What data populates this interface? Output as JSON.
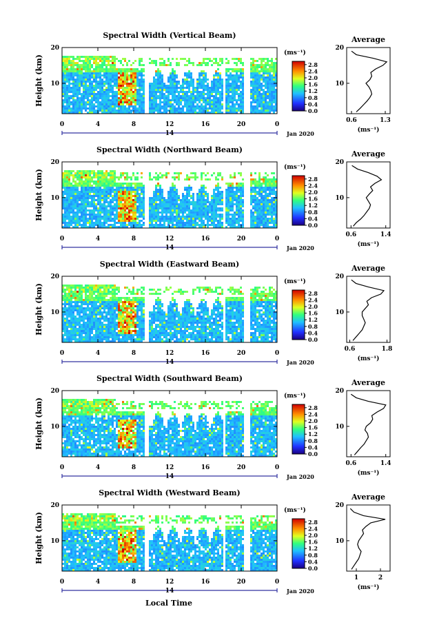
{
  "figure": {
    "ylabel": "Height (km)",
    "xlabel": "Local Time",
    "date_label": "Jan 2020",
    "day_label": "14",
    "unit_label": "(ms⁻¹)",
    "average_title": "Average"
  },
  "chart_data": [
    {
      "type": "heatmap",
      "title": "Spectral Width (Vertical Beam)",
      "xlabel": "Local Time",
      "ylabel": "Height (km)",
      "x_ticks": [
        "0",
        "4",
        "8",
        "12",
        "16",
        "20",
        "0"
      ],
      "xlim": [
        0,
        24
      ],
      "y_ticks": [
        "10",
        "20"
      ],
      "ylim": [
        1.5,
        20
      ],
      "colorbar": {
        "label": "(ms⁻¹)",
        "ticks": [
          "0.0",
          "0.4",
          "0.8",
          "1.2",
          "1.6",
          "2.0",
          "2.4",
          "2.8"
        ],
        "range": [
          0,
          3.0
        ]
      },
      "data_gaps_hours": [
        [
          5.9,
          6.1
        ],
        [
          9.2,
          9.6
        ],
        [
          18.0,
          18.3
        ],
        [
          20.4,
          21.0
        ]
      ],
      "enhanced_region": {
        "x": [
          6.3,
          8.3
        ],
        "y": [
          4,
          13
        ],
        "value": 2.6
      },
      "average_profile": {
        "title": "Average",
        "xlabel": "(ms⁻¹)",
        "x_ticks": [
          "0.6",
          "1.3"
        ],
        "xlim": [
          0.5,
          1.4
        ],
        "ylim": [
          1.5,
          20
        ],
        "height_km": [
          2,
          3,
          4,
          5,
          6,
          7,
          8,
          9,
          10,
          11,
          12,
          13,
          14,
          15,
          16,
          17,
          18,
          19
        ],
        "value": [
          0.7,
          0.78,
          0.85,
          0.92,
          0.98,
          1.02,
          1.0,
          0.96,
          0.9,
          0.98,
          1.02,
          1.0,
          1.1,
          1.25,
          1.33,
          1.05,
          0.7,
          0.6
        ]
      }
    },
    {
      "type": "heatmap",
      "title": "Spectral Width (Northward Beam)",
      "xlabel": "Local Time",
      "ylabel": "Height (km)",
      "x_ticks": [
        "0",
        "4",
        "8",
        "12",
        "16",
        "20",
        "0"
      ],
      "xlim": [
        0,
        24
      ],
      "y_ticks": [
        "10",
        "20"
      ],
      "ylim": [
        1.5,
        20
      ],
      "colorbar": {
        "label": "(ms⁻¹)",
        "ticks": [
          "0.0",
          "0.4",
          "0.8",
          "1.2",
          "1.6",
          "2.0",
          "2.4",
          "2.8"
        ],
        "range": [
          0,
          3.0
        ]
      },
      "data_gaps_hours": [
        [
          5.9,
          6.1
        ],
        [
          9.2,
          9.6
        ],
        [
          18.0,
          18.3
        ],
        [
          20.4,
          21.0
        ]
      ],
      "enhanced_region": {
        "x": [
          6.3,
          8.3
        ],
        "y": [
          3,
          12
        ],
        "value": 2.6
      },
      "average_profile": {
        "title": "Average",
        "xlabel": "(ms⁻¹)",
        "x_ticks": [
          "0.6",
          "1.4"
        ],
        "xlim": [
          0.5,
          1.5
        ],
        "ylim": [
          1.5,
          20
        ],
        "height_km": [
          2,
          3,
          4,
          5,
          6,
          7,
          8,
          9,
          10,
          11,
          12,
          13,
          14,
          15,
          16,
          17,
          18,
          19
        ],
        "value": [
          0.65,
          0.72,
          0.82,
          0.9,
          0.96,
          1.02,
          1.05,
          1.0,
          0.95,
          1.02,
          1.1,
          1.05,
          1.15,
          1.3,
          1.2,
          1.0,
          0.75,
          0.62
        ]
      }
    },
    {
      "type": "heatmap",
      "title": "Spectral Width (Eastward Beam)",
      "xlabel": "Local Time",
      "ylabel": "Height (km)",
      "x_ticks": [
        "0",
        "4",
        "8",
        "12",
        "16",
        "20",
        "0"
      ],
      "xlim": [
        0,
        24
      ],
      "y_ticks": [
        "10",
        "20"
      ],
      "ylim": [
        1.5,
        20
      ],
      "colorbar": {
        "label": "(ms⁻¹)",
        "ticks": [
          "0.0",
          "0.4",
          "0.8",
          "1.2",
          "1.6",
          "2.0",
          "2.4",
          "2.8"
        ],
        "range": [
          0,
          3.0
        ]
      },
      "data_gaps_hours": [
        [
          5.9,
          6.1
        ],
        [
          9.2,
          9.6
        ],
        [
          18.0,
          18.3
        ],
        [
          20.4,
          21.0
        ]
      ],
      "enhanced_region": {
        "x": [
          6.3,
          8.3
        ],
        "y": [
          4,
          13
        ],
        "value": 2.6
      },
      "average_profile": {
        "title": "Average",
        "xlabel": "(ms⁻¹)",
        "x_ticks": [
          "0.6",
          "1.8"
        ],
        "xlim": [
          0.5,
          1.9
        ],
        "ylim": [
          1.5,
          20
        ],
        "height_km": [
          2,
          3,
          4,
          5,
          6,
          7,
          8,
          9,
          10,
          11,
          12,
          13,
          14,
          15,
          16,
          17,
          18,
          19
        ],
        "value": [
          0.7,
          0.8,
          0.9,
          1.0,
          1.05,
          1.1,
          1.05,
          1.0,
          1.0,
          1.1,
          1.2,
          1.15,
          1.3,
          1.6,
          1.7,
          1.2,
          0.8,
          0.65
        ]
      }
    },
    {
      "type": "heatmap",
      "title": "Spectral Width (Southward Beam)",
      "xlabel": "Local Time",
      "ylabel": "Height (km)",
      "x_ticks": [
        "0",
        "4",
        "8",
        "12",
        "16",
        "20",
        "0"
      ],
      "xlim": [
        0,
        24
      ],
      "y_ticks": [
        "10",
        "20"
      ],
      "ylim": [
        1.5,
        20
      ],
      "colorbar": {
        "label": "(ms⁻¹)",
        "ticks": [
          "0.0",
          "0.4",
          "0.8",
          "1.2",
          "1.6",
          "2.0",
          "2.4",
          "2.8"
        ],
        "range": [
          0,
          3.0
        ]
      },
      "data_gaps_hours": [
        [
          5.9,
          6.1
        ],
        [
          9.2,
          9.6
        ],
        [
          18.0,
          18.3
        ],
        [
          20.4,
          21.0
        ]
      ],
      "enhanced_region": {
        "x": [
          6.3,
          8.3
        ],
        "y": [
          4,
          12
        ],
        "value": 2.6
      },
      "average_profile": {
        "title": "Average",
        "xlabel": "(ms⁻¹)",
        "x_ticks": [
          "0.6",
          "1.4"
        ],
        "xlim": [
          0.5,
          1.5
        ],
        "ylim": [
          1.5,
          20
        ],
        "height_km": [
          2,
          3,
          4,
          5,
          6,
          7,
          8,
          9,
          10,
          11,
          12,
          13,
          14,
          15,
          16,
          17,
          18,
          19
        ],
        "value": [
          0.68,
          0.75,
          0.82,
          0.9,
          0.95,
          1.0,
          0.98,
          0.92,
          0.95,
          1.05,
          1.1,
          1.08,
          1.2,
          1.35,
          1.4,
          1.0,
          0.72,
          0.6
        ]
      }
    },
    {
      "type": "heatmap",
      "title": "Spectral Width (Westward Beam)",
      "xlabel": "Local Time",
      "ylabel": "Height (km)",
      "x_ticks": [
        "0",
        "4",
        "8",
        "12",
        "16",
        "20",
        "0"
      ],
      "xlim": [
        0,
        24
      ],
      "y_ticks": [
        "10",
        "20"
      ],
      "ylim": [
        1.5,
        20
      ],
      "colorbar": {
        "label": "(ms⁻¹)",
        "ticks": [
          "0.0",
          "0.4",
          "0.8",
          "1.2",
          "1.6",
          "2.0",
          "2.4",
          "2.8"
        ],
        "range": [
          0,
          3.0
        ]
      },
      "data_gaps_hours": [
        [
          5.9,
          6.1
        ],
        [
          9.2,
          9.6
        ],
        [
          18.0,
          18.3
        ],
        [
          20.4,
          21.0
        ]
      ],
      "enhanced_region": {
        "x": [
          6.3,
          8.3
        ],
        "y": [
          4,
          13
        ],
        "value": 2.6
      },
      "average_profile": {
        "title": "Average",
        "xlabel": "(ms⁻¹)",
        "x_ticks": [
          "1",
          "2"
        ],
        "xlim": [
          0.6,
          2.4
        ],
        "ylim": [
          1.5,
          20
        ],
        "height_km": [
          2,
          3,
          4,
          5,
          6,
          7,
          8,
          9,
          10,
          11,
          12,
          13,
          14,
          15,
          16,
          17,
          18,
          19
        ],
        "value": [
          0.8,
          0.9,
          1.0,
          1.1,
          1.15,
          1.2,
          1.1,
          1.05,
          1.1,
          1.2,
          1.3,
          1.25,
          1.4,
          1.6,
          2.2,
          1.3,
          0.9,
          0.75
        ]
      }
    }
  ]
}
